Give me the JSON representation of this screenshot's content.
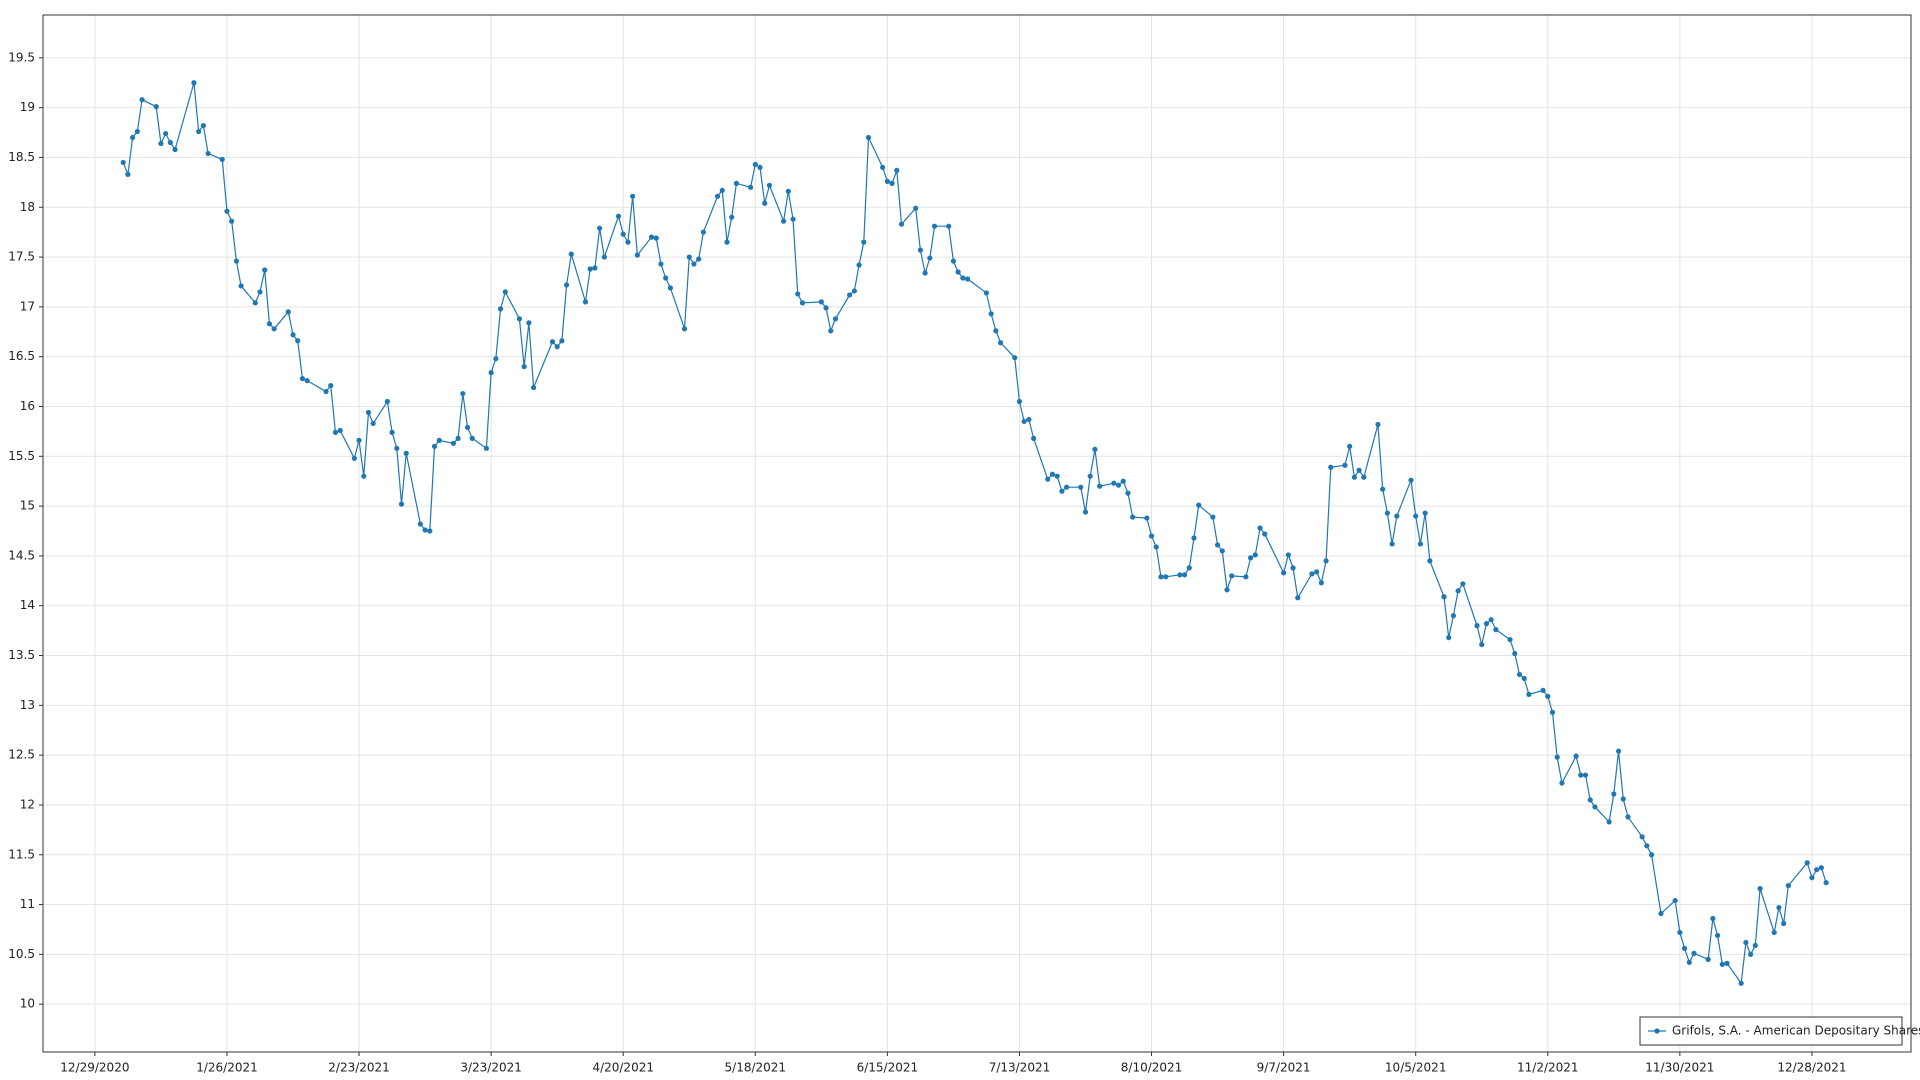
{
  "chart_data": {
    "type": "line",
    "x": [
      "1/4/2021",
      "1/5/2021",
      "1/6/2021",
      "1/7/2021",
      "1/8/2021",
      "1/11/2021",
      "1/12/2021",
      "1/13/2021",
      "1/14/2021",
      "1/15/2021",
      "1/19/2021",
      "1/20/2021",
      "1/21/2021",
      "1/22/2021",
      "1/25/2021",
      "1/26/2021",
      "1/27/2021",
      "1/28/2021",
      "1/29/2021",
      "2/1/2021",
      "2/2/2021",
      "2/3/2021",
      "2/4/2021",
      "2/5/2021",
      "2/8/2021",
      "2/9/2021",
      "2/10/2021",
      "2/11/2021",
      "2/12/2021",
      "2/16/2021",
      "2/17/2021",
      "2/18/2021",
      "2/19/2021",
      "2/22/2021",
      "2/23/2021",
      "2/24/2021",
      "2/25/2021",
      "2/26/2021",
      "3/1/2021",
      "3/2/2021",
      "3/3/2021",
      "3/4/2021",
      "3/5/2021",
      "3/8/2021",
      "3/9/2021",
      "3/10/2021",
      "3/11/2021",
      "3/12/2021",
      "3/15/2021",
      "3/16/2021",
      "3/17/2021",
      "3/18/2021",
      "3/19/2021",
      "3/22/2021",
      "3/23/2021",
      "3/24/2021",
      "3/25/2021",
      "3/26/2021",
      "3/29/2021",
      "3/30/2021",
      "3/31/2021",
      "4/1/2021",
      "4/5/2021",
      "4/6/2021",
      "4/7/2021",
      "4/8/2021",
      "4/9/2021",
      "4/12/2021",
      "4/13/2021",
      "4/14/2021",
      "4/15/2021",
      "4/16/2021",
      "4/19/2021",
      "4/20/2021",
      "4/21/2021",
      "4/22/2021",
      "4/23/2021",
      "4/26/2021",
      "4/27/2021",
      "4/28/2021",
      "4/29/2021",
      "4/30/2021",
      "5/3/2021",
      "5/4/2021",
      "5/5/2021",
      "5/6/2021",
      "5/7/2021",
      "5/10/2021",
      "5/11/2021",
      "5/12/2021",
      "5/13/2021",
      "5/14/2021",
      "5/17/2021",
      "5/18/2021",
      "5/19/2021",
      "5/20/2021",
      "5/21/2021",
      "5/24/2021",
      "5/25/2021",
      "5/26/2021",
      "5/27/2021",
      "5/28/2021",
      "6/1/2021",
      "6/2/2021",
      "6/3/2021",
      "6/4/2021",
      "6/7/2021",
      "6/8/2021",
      "6/9/2021",
      "6/10/2021",
      "6/11/2021",
      "6/14/2021",
      "6/15/2021",
      "6/16/2021",
      "6/17/2021",
      "6/18/2021",
      "6/21/2021",
      "6/22/2021",
      "6/23/2021",
      "6/24/2021",
      "6/25/2021",
      "6/28/2021",
      "6/29/2021",
      "6/30/2021",
      "7/1/2021",
      "7/2/2021",
      "7/6/2021",
      "7/7/2021",
      "7/8/2021",
      "7/9/2021",
      "7/12/2021",
      "7/13/2021",
      "7/14/2021",
      "7/15/2021",
      "7/16/2021",
      "7/19/2021",
      "7/20/2021",
      "7/21/2021",
      "7/22/2021",
      "7/23/2021",
      "7/26/2021",
      "7/27/2021",
      "7/28/2021",
      "7/29/2021",
      "7/30/2021",
      "8/2/2021",
      "8/3/2021",
      "8/4/2021",
      "8/5/2021",
      "8/6/2021",
      "8/9/2021",
      "8/10/2021",
      "8/11/2021",
      "8/12/2021",
      "8/13/2021",
      "8/16/2021",
      "8/17/2021",
      "8/18/2021",
      "8/19/2021",
      "8/20/2021",
      "8/23/2021",
      "8/24/2021",
      "8/25/2021",
      "8/26/2021",
      "8/27/2021",
      "8/30/2021",
      "8/31/2021",
      "9/1/2021",
      "9/2/2021",
      "9/3/2021",
      "9/7/2021",
      "9/8/2021",
      "9/9/2021",
      "9/10/2021",
      "9/13/2021",
      "9/14/2021",
      "9/15/2021",
      "9/16/2021",
      "9/17/2021",
      "9/20/2021",
      "9/21/2021",
      "9/22/2021",
      "9/23/2021",
      "9/24/2021",
      "9/27/2021",
      "9/28/2021",
      "9/29/2021",
      "9/30/2021",
      "10/1/2021",
      "10/4/2021",
      "10/5/2021",
      "10/6/2021",
      "10/7/2021",
      "10/8/2021",
      "10/11/2021",
      "10/12/2021",
      "10/13/2021",
      "10/14/2021",
      "10/15/2021",
      "10/18/2021",
      "10/19/2021",
      "10/20/2021",
      "10/21/2021",
      "10/22/2021",
      "10/25/2021",
      "10/26/2021",
      "10/27/2021",
      "10/28/2021",
      "10/29/2021",
      "11/1/2021",
      "11/2/2021",
      "11/3/2021",
      "11/4/2021",
      "11/5/2021",
      "11/8/2021",
      "11/9/2021",
      "11/10/2021",
      "11/11/2021",
      "11/12/2021",
      "11/15/2021",
      "11/16/2021",
      "11/17/2021",
      "11/18/2021",
      "11/19/2021",
      "11/22/2021",
      "11/23/2021",
      "11/24/2021",
      "11/26/2021",
      "11/29/2021",
      "11/30/2021",
      "12/1/2021",
      "12/2/2021",
      "12/3/2021",
      "12/6/2021",
      "12/7/2021",
      "12/8/2021",
      "12/9/2021",
      "12/10/2021",
      "12/13/2021",
      "12/14/2021",
      "12/15/2021",
      "12/16/2021",
      "12/17/2021",
      "12/20/2021",
      "12/21/2021",
      "12/22/2021",
      "12/23/2021",
      "12/27/2021",
      "12/28/2021",
      "12/29/2021",
      "12/30/2021",
      "12/31/2021"
    ],
    "series": [
      {
        "name": "Grifols, S.A. - American Depositary Shares",
        "color": "#1f77b4",
        "values": [
          18.45,
          18.33,
          18.7,
          18.76,
          19.08,
          19.01,
          18.64,
          18.74,
          18.65,
          18.58,
          19.25,
          18.76,
          18.82,
          18.54,
          18.48,
          17.96,
          17.86,
          17.46,
          17.21,
          17.04,
          17.15,
          17.37,
          16.83,
          16.78,
          16.95,
          16.72,
          16.66,
          16.28,
          16.26,
          16.15,
          16.21,
          15.74,
          15.76,
          15.48,
          15.66,
          15.3,
          15.94,
          15.83,
          16.05,
          15.74,
          15.58,
          15.02,
          15.53,
          14.82,
          14.76,
          14.75,
          15.6,
          15.66,
          15.63,
          15.68,
          16.13,
          15.79,
          15.68,
          15.58,
          16.34,
          16.48,
          16.98,
          17.15,
          16.88,
          16.4,
          16.84,
          16.19,
          16.65,
          16.6,
          16.66,
          17.22,
          17.53,
          17.05,
          17.38,
          17.39,
          17.79,
          17.5,
          17.91,
          17.73,
          17.65,
          18.11,
          17.52,
          17.7,
          17.69,
          17.43,
          17.29,
          17.19,
          16.78,
          17.5,
          17.43,
          17.48,
          17.75,
          18.11,
          18.17,
          17.65,
          17.9,
          18.24,
          18.2,
          18.43,
          18.4,
          18.04,
          18.22,
          17.86,
          18.16,
          17.88,
          17.13,
          17.04,
          17.05,
          16.99,
          16.76,
          16.88,
          17.12,
          17.16,
          17.42,
          17.65,
          18.7,
          18.4,
          18.26,
          18.24,
          18.37,
          17.83,
          17.99,
          17.57,
          17.34,
          17.49,
          17.81,
          17.81,
          17.46,
          17.35,
          17.29,
          17.28,
          17.14,
          16.93,
          16.76,
          16.64,
          16.49,
          16.05,
          15.85,
          15.87,
          15.68,
          15.27,
          15.32,
          15.3,
          15.15,
          15.19,
          15.19,
          14.94,
          15.3,
          15.57,
          15.2,
          15.23,
          15.21,
          15.25,
          15.13,
          14.89,
          14.88,
          14.7,
          14.59,
          14.29,
          14.29,
          14.31,
          14.31,
          14.38,
          14.68,
          15.01,
          14.89,
          14.61,
          14.55,
          14.16,
          14.3,
          14.29,
          14.48,
          14.51,
          14.78,
          14.72,
          14.33,
          14.51,
          14.38,
          14.08,
          14.32,
          14.34,
          14.23,
          14.45,
          15.39,
          15.41,
          15.6,
          15.29,
          15.36,
          15.29,
          15.82,
          15.17,
          14.93,
          14.62,
          14.9,
          15.26,
          14.9,
          14.62,
          14.93,
          14.45,
          14.09,
          13.68,
          13.9,
          14.15,
          14.22,
          13.8,
          13.61,
          13.82,
          13.86,
          13.76,
          13.66,
          13.52,
          13.31,
          13.27,
          13.11,
          13.15,
          13.09,
          12.93,
          12.48,
          12.22,
          12.49,
          12.3,
          12.3,
          12.05,
          11.98,
          11.83,
          12.11,
          12.54,
          12.06,
          11.88,
          11.68,
          11.59,
          11.5,
          10.91,
          11.04,
          10.72,
          10.56,
          10.42,
          10.51,
          10.45,
          10.86,
          10.69,
          10.4,
          10.41,
          10.21,
          10.62,
          10.5,
          10.59,
          11.16,
          10.72,
          10.97,
          10.81,
          11.19,
          11.42,
          11.27,
          11.35,
          11.37,
          11.22
        ]
      }
    ],
    "xlim": [
      "12/18/2020",
      "1/18/2022"
    ],
    "xticks": [
      "12/29/2020",
      "1/26/2021",
      "2/23/2021",
      "3/23/2021",
      "4/20/2021",
      "5/18/2021",
      "6/15/2021",
      "7/13/2021",
      "8/10/2021",
      "9/7/2021",
      "10/5/2021",
      "11/2/2021",
      "11/30/2021",
      "12/28/2021"
    ],
    "ylim": [
      9.52,
      19.93
    ],
    "yticks": [
      10,
      10.5,
      11,
      11.5,
      12,
      12.5,
      13,
      13.5,
      14,
      14.5,
      15,
      15.5,
      16,
      16.5,
      17,
      17.5,
      18,
      18.5,
      19,
      19.5
    ],
    "grid": true,
    "legend": "lower right"
  }
}
